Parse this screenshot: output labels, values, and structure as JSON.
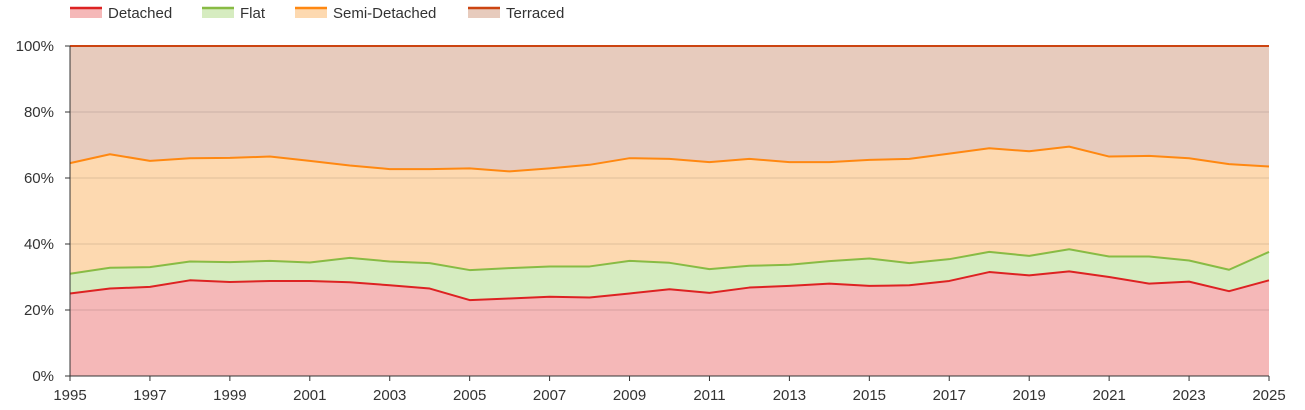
{
  "chart_data": {
    "type": "area",
    "stacked": true,
    "x": [
      1995,
      1996,
      1997,
      1998,
      1999,
      2000,
      2001,
      2002,
      2003,
      2004,
      2005,
      2006,
      2007,
      2008,
      2009,
      2010,
      2011,
      2012,
      2013,
      2014,
      2015,
      2016,
      2017,
      2018,
      2019,
      2020,
      2021,
      2022,
      2023,
      2024,
      2025
    ],
    "x_ticks": [
      "1995",
      "1997",
      "1999",
      "2001",
      "2003",
      "2005",
      "2007",
      "2009",
      "2011",
      "2013",
      "2015",
      "2017",
      "2019",
      "2021",
      "2023",
      "2025"
    ],
    "y_ticks": [
      "0%",
      "20%",
      "40%",
      "60%",
      "80%",
      "100%"
    ],
    "ylim": [
      0,
      100
    ],
    "grid": true,
    "legend_position": "top-left",
    "series": [
      {
        "name": "Detached",
        "line_color": "#dd2222",
        "fill_color": "#f5b8b8",
        "values": [
          25,
          26.5,
          27,
          29,
          28.5,
          28.8,
          28.8,
          28.4,
          27.5,
          26.5,
          23,
          23.5,
          24,
          23.8,
          25,
          26.3,
          25.2,
          26.8,
          27.3,
          28,
          27.3,
          27.5,
          28.8,
          31.5,
          30.5,
          31.7,
          30,
          28,
          28.6,
          25.7,
          29
        ]
      },
      {
        "name": "Flat",
        "line_color": "#88bb44",
        "fill_color": "#d6ecc0",
        "values": [
          31,
          32.8,
          33,
          34.7,
          34.5,
          34.9,
          34.4,
          35.8,
          34.7,
          34.2,
          32.1,
          32.7,
          33.2,
          33.2,
          34.9,
          34.3,
          32.4,
          33.4,
          33.7,
          34.8,
          35.6,
          34.2,
          35.4,
          37.6,
          36.4,
          38.4,
          36.2,
          36.2,
          35,
          32.2,
          37.6
        ]
      },
      {
        "name": "Semi-Detached",
        "line_color": "#ff8811",
        "fill_color": "#fdd9b0",
        "values": [
          64.5,
          67.2,
          65.2,
          66,
          66.1,
          66.5,
          65.2,
          63.8,
          62.7,
          62.7,
          62.9,
          62,
          62.9,
          64,
          66,
          65.8,
          64.8,
          65.8,
          64.8,
          64.8,
          65.5,
          65.8,
          67.4,
          69,
          68.1,
          69.5,
          66.5,
          66.7,
          66,
          64.2,
          63.5
        ]
      },
      {
        "name": "Terraced",
        "line_color": "#cc4411",
        "fill_color": "#e7cbbd",
        "values": [
          100,
          100,
          100,
          100,
          100,
          100,
          100,
          100,
          100,
          100,
          100,
          100,
          100,
          100,
          100,
          100,
          100,
          100,
          100,
          100,
          100,
          100,
          100,
          100,
          100,
          100,
          100,
          100,
          100,
          100,
          100
        ]
      }
    ],
    "values_are_cumulative": true
  }
}
